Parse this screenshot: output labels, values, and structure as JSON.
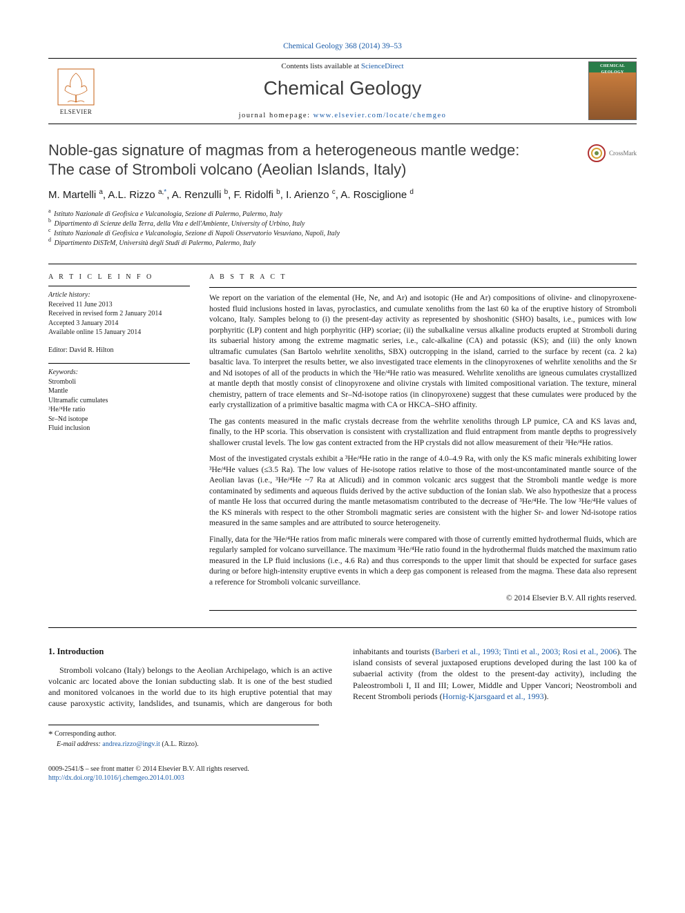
{
  "top_link_text": "Chemical Geology 368 (2014) 39–53",
  "header": {
    "availability_prefix": "Contents lists available at ",
    "availability_link": "ScienceDirect",
    "journal_name": "Chemical Geology",
    "homepage_label": "journal homepage: ",
    "homepage_url": "www.elsevier.com/locate/chemgeo",
    "publisher": "ELSEVIER",
    "cover_title": "CHEMICAL GEOLOGY"
  },
  "crossmark_label": "CrossMark",
  "title_line1": "Noble-gas signature of magmas from a heterogeneous mantle wedge:",
  "title_line2": "The case of Stromboli volcano (Aeolian Islands, Italy)",
  "authors_html": "M. Martelli <sup>a</sup>, A.L. Rizzo <sup>a,</sup><sup class=\"ast\">*</sup>, A. Renzulli <sup>b</sup>, F. Ridolfi <sup>b</sup>, I. Arienzo <sup>c</sup>, A. Rosciglione <sup>d</sup>",
  "affiliations": [
    {
      "sup": "a",
      "text": "Istituto Nazionale di Geofisica e Vulcanologia, Sezione di Palermo, Palermo, Italy"
    },
    {
      "sup": "b",
      "text": "Dipartimento di Scienze della Terra, della Vita e dell'Ambiente, University of Urbino, Italy"
    },
    {
      "sup": "c",
      "text": "Istituto Nazionale di Geofisica e Vulcanologia, Sezione di Napoli Osservatorio Vesuviano, Napoli, Italy"
    },
    {
      "sup": "d",
      "text": "Dipartimento DiSTeM, Università degli Studi di Palermo, Palermo, Italy"
    }
  ],
  "article_info": {
    "heading": "A R T I C L E   I N F O",
    "history_label": "Article history:",
    "history": [
      "Received 11 June 2013",
      "Received in revised form 2 January 2014",
      "Accepted 3 January 2014",
      "Available online 15 January 2014"
    ],
    "editor_label": "Editor: ",
    "editor": "David R. Hilton",
    "keywords_label": "Keywords:",
    "keywords": [
      "Stromboli",
      "Mantle",
      "Ultramafic cumulates",
      "³He/⁴He ratio",
      "Sr–Nd isotope",
      "Fluid inclusion"
    ]
  },
  "abstract": {
    "heading": "A B S T R A C T",
    "paragraphs": [
      "We report on the variation of the elemental (He, Ne, and Ar) and isotopic (He and Ar) compositions of olivine- and clinopyroxene-hosted fluid inclusions hosted in lavas, pyroclastics, and cumulate xenoliths from the last 60 ka of the eruptive history of Stromboli volcano, Italy. Samples belong to (i) the present-day activity as represented by shoshonitic (SHO) basalts, i.e., pumices with low porphyritic (LP) content and high porphyritic (HP) scoriae; (ii) the subalkaline versus alkaline products erupted at Stromboli during its subaerial history among the extreme magmatic series, i.e., calc-alkaline (CA) and potassic (KS); and (iii) the only known ultramafic cumulates (San Bartolo wehrlite xenoliths, SBX) outcropping in the island, carried to the surface by recent (ca. 2 ka) basaltic lava. To interpret the results better, we also investigated trace elements in the clinopyroxenes of wehrlite xenoliths and the Sr and Nd isotopes of all of the products in which the ³He/⁴He ratio was measured. Wehrlite xenoliths are igneous cumulates crystallized at mantle depth that mostly consist of clinopyroxene and olivine crystals with limited compositional variation. The texture, mineral chemistry, pattern of trace elements and Sr–Nd-isotope ratios (in clinopyroxene) suggest that these cumulates were produced by the early crystallization of a primitive basaltic magma with CA or HKCA–SHO affinity.",
      "The gas contents measured in the mafic crystals decrease from the wehrlite xenoliths through LP pumice, CA and KS lavas and, finally, to the HP scoria. This observation is consistent with crystallization and fluid entrapment from mantle depths to progressively shallower crustal levels. The low gas content extracted from the HP crystals did not allow measurement of their ³He/⁴He ratios.",
      "Most of the investigated crystals exhibit a ³He/⁴He ratio in the range of 4.0–4.9 Ra, with only the KS mafic minerals exhibiting lower ³He/⁴He values (≤3.5 Ra). The low values of He-isotope ratios relative to those of the most-uncontaminated mantle source of the Aeolian lavas (i.e., ³He/⁴He ~7 Ra at Alicudi) and in common volcanic arcs suggest that the Stromboli mantle wedge is more contaminated by sediments and aqueous fluids derived by the active subduction of the Ionian slab. We also hypothesize that a process of mantle He loss that occurred during the mantle metasomatism contributed to the decrease of ³He/⁴He. The low ³He/⁴He values of the KS minerals with respect to the other Stromboli magmatic series are consistent with the higher Sr- and lower Nd-isotope ratios measured in the same samples and are attributed to source heterogeneity.",
      "Finally, data for the ³He/⁴He ratios from mafic minerals were compared with those of currently emitted hydrothermal fluids, which are regularly sampled for volcano surveillance. The maximum ³He/⁴He ratio found in the hydrothermal fluids matched the maximum ratio measured in the LP fluid inclusions (i.e., 4.6 Ra) and thus corresponds to the upper limit that should be expected for surface gases during or before high-intensity eruptive events in which a deep gas component is released from the magma. These data also represent a reference for Stromboli volcanic surveillance."
    ],
    "copyright": "© 2014 Elsevier B.V. All rights reserved."
  },
  "intro": {
    "heading": "1. Introduction",
    "p1": "Stromboli volcano (Italy) belongs to the Aeolian Archipelago, which is an active volcanic arc located above the Ionian subducting slab. It is one of the best studied and monitored volcanoes in the world",
    "p2_prefix": "due to its high eruptive potential that may cause paroxystic activity, landslides, and tsunamis, which are dangerous for both inhabitants and tourists (",
    "p2_link": "Barberi et al., 1993; Tinti et al., 2003; Rosi et al., 2006",
    "p2_suffix": "). The island consists of several juxtaposed eruptions developed during the last 100 ka of subaerial activity (from the oldest to the present-day activity), including the Paleostromboli I, II and III; Lower, Middle and Upper Vancori; Neostromboli and Recent Stromboli periods (",
    "p2_link2": "Hornig-Kjarsgaard et al., 1993",
    "p2_suffix2": ")."
  },
  "footnotes": {
    "corr_label": "Corresponding author.",
    "email_label": "E-mail address: ",
    "email": "andrea.rizzo@ingv.it",
    "email_suffix": " (A.L. Rizzo)."
  },
  "bottom": {
    "left1": "0009-2541/$ – see front matter © 2014 Elsevier B.V. All rights reserved.",
    "left2": "http://dx.doi.org/10.1016/j.chemgeo.2014.01.003"
  }
}
